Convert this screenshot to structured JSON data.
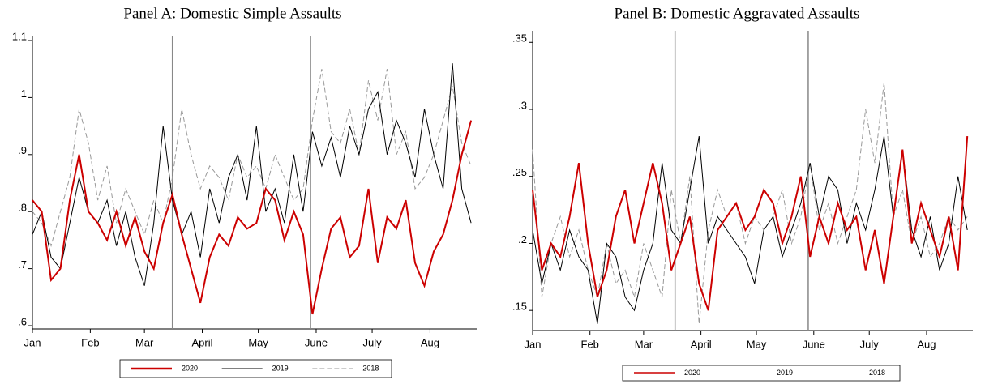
{
  "chart_data": [
    {
      "type": "line",
      "title": "Panel A: Domestic Simple Assaults",
      "x": [
        1,
        6,
        11,
        16,
        21,
        26,
        31,
        36,
        41,
        46,
        51,
        56,
        61,
        66,
        71,
        76,
        81,
        86,
        91,
        96,
        101,
        106,
        111,
        116,
        121,
        126,
        131,
        136,
        141,
        146,
        151,
        156,
        161,
        166,
        171,
        176,
        181,
        186,
        191,
        196,
        201,
        206,
        211,
        216,
        221,
        226,
        231,
        236
      ],
      "xlim": [
        1,
        239
      ],
      "xticks": [
        {
          "value": 1,
          "label": "Jan"
        },
        {
          "value": 32,
          "label": "Feb"
        },
        {
          "value": 61,
          "label": "Mar"
        },
        {
          "value": 92,
          "label": "April"
        },
        {
          "value": 122,
          "label": "May"
        },
        {
          "value": 153,
          "label": "June"
        },
        {
          "value": 183,
          "label": "July"
        },
        {
          "value": 214,
          "label": "Aug"
        }
      ],
      "ylim": [
        0.6,
        1.1
      ],
      "yticks": [
        {
          "value": 0.6,
          "label": ".6"
        },
        {
          "value": 0.7,
          "label": ".7"
        },
        {
          "value": 0.8,
          "label": ".8"
        },
        {
          "value": 0.9,
          "label": ".9"
        },
        1,
        1.1
      ],
      "vlines": [
        76,
        150
      ],
      "series": [
        {
          "name": "2020",
          "color": "#cc0000",
          "line_style": "solid",
          "values": [
            0.82,
            0.8,
            0.68,
            0.7,
            0.82,
            0.9,
            0.8,
            0.78,
            0.75,
            0.8,
            0.74,
            0.79,
            0.73,
            0.7,
            0.78,
            0.83,
            0.76,
            0.7,
            0.64,
            0.72,
            0.76,
            0.74,
            0.79,
            0.77,
            0.78,
            0.84,
            0.82,
            0.75,
            0.8,
            0.76,
            0.62,
            0.7,
            0.77,
            0.79,
            0.72,
            0.74,
            0.84,
            0.71,
            0.79,
            0.77,
            0.82,
            0.71,
            0.67,
            0.73,
            0.76,
            0.82,
            0.9,
            0.96
          ]
        },
        {
          "name": "2019",
          "color": "#000000",
          "line_style": "solid",
          "values": [
            0.76,
            0.8,
            0.72,
            0.7,
            0.78,
            0.86,
            0.8,
            0.78,
            0.82,
            0.74,
            0.8,
            0.72,
            0.67,
            0.78,
            0.95,
            0.82,
            0.76,
            0.8,
            0.72,
            0.84,
            0.78,
            0.86,
            0.9,
            0.82,
            0.95,
            0.8,
            0.84,
            0.78,
            0.9,
            0.8,
            0.94,
            0.88,
            0.93,
            0.86,
            0.95,
            0.9,
            0.98,
            1.01,
            0.9,
            0.96,
            0.92,
            0.86,
            0.98,
            0.9,
            0.84,
            1.06,
            0.84,
            0.78
          ]
        },
        {
          "name": "2018",
          "color": "#999999",
          "line_style": "dashed",
          "values": [
            0.8,
            0.78,
            0.74,
            0.8,
            0.86,
            0.98,
            0.92,
            0.82,
            0.88,
            0.78,
            0.84,
            0.8,
            0.76,
            0.82,
            0.78,
            0.86,
            0.98,
            0.9,
            0.84,
            0.88,
            0.86,
            0.82,
            0.9,
            0.86,
            0.88,
            0.84,
            0.9,
            0.86,
            0.82,
            0.84,
            0.96,
            1.05,
            0.94,
            0.92,
            0.98,
            0.9,
            1.03,
            0.96,
            1.05,
            0.9,
            0.94,
            0.84,
            0.86,
            0.9,
            0.96,
            1.02,
            0.92,
            0.88
          ]
        }
      ]
    },
    {
      "type": "line",
      "title": "Panel B: Domestic Aggravated Assaults",
      "x": [
        1,
        6,
        11,
        16,
        21,
        26,
        31,
        36,
        41,
        46,
        51,
        56,
        61,
        66,
        71,
        76,
        81,
        86,
        91,
        96,
        101,
        106,
        111,
        116,
        121,
        126,
        131,
        136,
        141,
        146,
        151,
        156,
        161,
        166,
        171,
        176,
        181,
        186,
        191,
        196,
        201,
        206,
        211,
        216,
        221,
        226,
        231,
        236
      ],
      "xlim": [
        1,
        239
      ],
      "xticks": [
        {
          "value": 1,
          "label": "Jan"
        },
        {
          "value": 32,
          "label": "Feb"
        },
        {
          "value": 61,
          "label": "Mar"
        },
        {
          "value": 92,
          "label": "April"
        },
        {
          "value": 122,
          "label": "May"
        },
        {
          "value": 153,
          "label": "June"
        },
        {
          "value": 183,
          "label": "July"
        },
        {
          "value": 214,
          "label": "Aug"
        }
      ],
      "ylim": [
        0.135,
        0.355
      ],
      "yticks": [
        {
          "value": 0.15,
          "label": ".15"
        },
        {
          "value": 0.2,
          "label": ".2"
        },
        {
          "value": 0.25,
          "label": ".25"
        },
        {
          "value": 0.3,
          "label": ".3"
        },
        {
          "value": 0.35,
          "label": ".35"
        }
      ],
      "vlines": [
        78,
        150
      ],
      "series": [
        {
          "name": "2020",
          "color": "#cc0000",
          "line_style": "solid",
          "values": [
            0.24,
            0.18,
            0.2,
            0.19,
            0.22,
            0.26,
            0.2,
            0.16,
            0.18,
            0.22,
            0.24,
            0.2,
            0.23,
            0.26,
            0.23,
            0.18,
            0.2,
            0.22,
            0.17,
            0.15,
            0.21,
            0.22,
            0.23,
            0.21,
            0.22,
            0.24,
            0.23,
            0.2,
            0.22,
            0.25,
            0.19,
            0.22,
            0.2,
            0.23,
            0.21,
            0.22,
            0.18,
            0.21,
            0.17,
            0.22,
            0.27,
            0.2,
            0.23,
            0.21,
            0.19,
            0.22,
            0.18,
            0.28
          ]
        },
        {
          "name": "2019",
          "color": "#000000",
          "line_style": "solid",
          "values": [
            0.21,
            0.17,
            0.2,
            0.18,
            0.21,
            0.19,
            0.18,
            0.14,
            0.2,
            0.19,
            0.16,
            0.15,
            0.18,
            0.2,
            0.26,
            0.21,
            0.2,
            0.24,
            0.28,
            0.2,
            0.22,
            0.21,
            0.2,
            0.19,
            0.17,
            0.21,
            0.22,
            0.19,
            0.21,
            0.23,
            0.26,
            0.22,
            0.25,
            0.24,
            0.2,
            0.23,
            0.21,
            0.24,
            0.28,
            0.22,
            0.27,
            0.21,
            0.19,
            0.22,
            0.18,
            0.2,
            0.25,
            0.21
          ]
        },
        {
          "name": "2018",
          "color": "#999999",
          "line_style": "dashed",
          "values": [
            0.27,
            0.16,
            0.2,
            0.22,
            0.19,
            0.21,
            0.18,
            0.16,
            0.2,
            0.17,
            0.18,
            0.16,
            0.2,
            0.18,
            0.16,
            0.24,
            0.2,
            0.25,
            0.14,
            0.21,
            0.24,
            0.22,
            0.23,
            0.2,
            0.22,
            0.21,
            0.22,
            0.24,
            0.2,
            0.22,
            0.26,
            0.21,
            0.23,
            0.2,
            0.22,
            0.24,
            0.3,
            0.26,
            0.32,
            0.22,
            0.24,
            0.2,
            0.22,
            0.19,
            0.2,
            0.22,
            0.21,
            0.22
          ]
        }
      ]
    }
  ]
}
